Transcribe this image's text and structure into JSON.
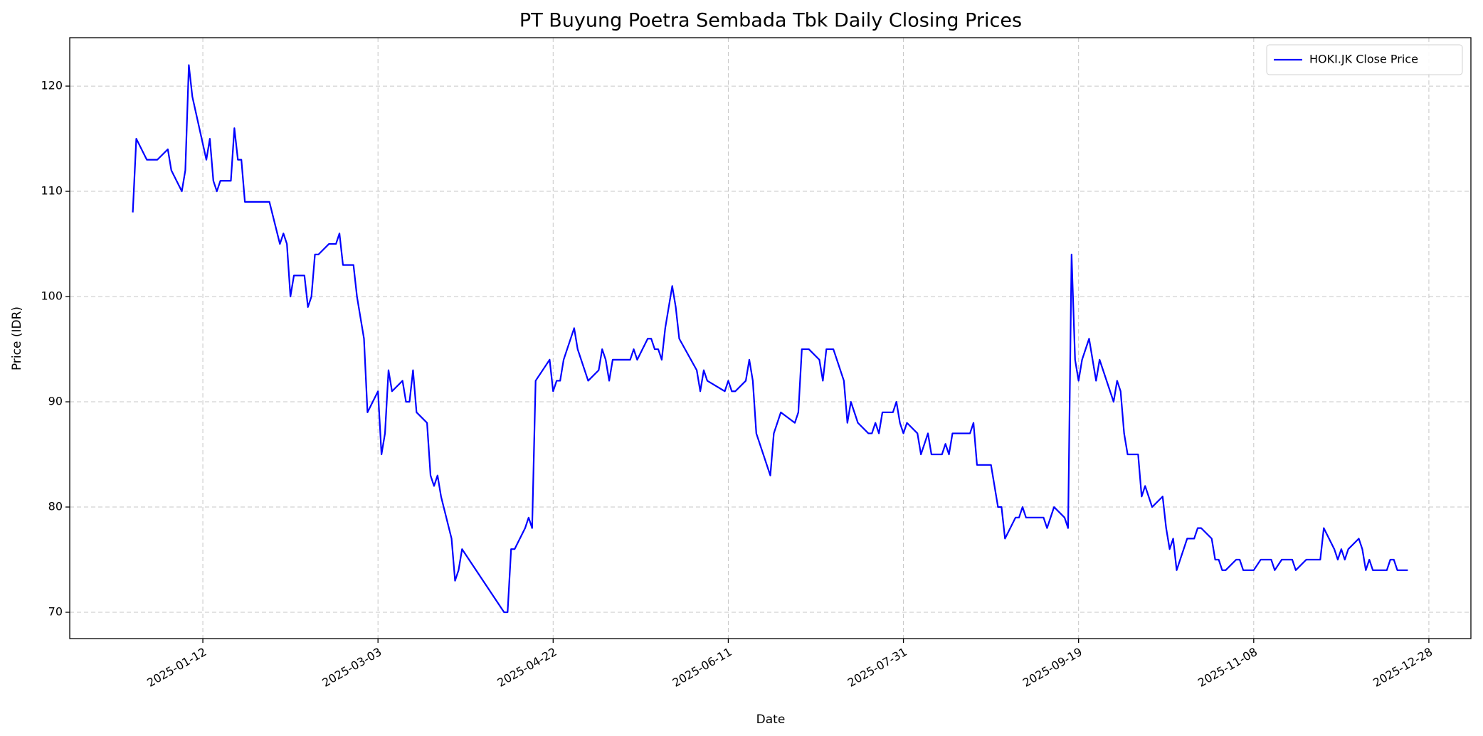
{
  "chart_data": {
    "type": "line",
    "title": "PT Buyung Poetra Sembada Tbk Daily Closing Prices",
    "xlabel": "Date",
    "ylabel": "Price (IDR)",
    "x": [
      "2024-12-23",
      "2024-12-24",
      "2024-12-27",
      "2024-12-30",
      "2025-01-02",
      "2025-01-03",
      "2025-01-06",
      "2025-01-07",
      "2025-01-08",
      "2025-01-09",
      "2025-01-13",
      "2025-01-14",
      "2025-01-15",
      "2025-01-16",
      "2025-01-17",
      "2025-01-20",
      "2025-01-21",
      "2025-01-22",
      "2025-01-23",
      "2025-01-24",
      "2025-01-31",
      "2025-02-03",
      "2025-02-04",
      "2025-02-05",
      "2025-02-06",
      "2025-02-07",
      "2025-02-10",
      "2025-02-11",
      "2025-02-12",
      "2025-02-13",
      "2025-02-14",
      "2025-02-17",
      "2025-02-19",
      "2025-02-20",
      "2025-02-21",
      "2025-02-24",
      "2025-02-25",
      "2025-02-27",
      "2025-02-28",
      "2025-03-03",
      "2025-03-04",
      "2025-03-05",
      "2025-03-06",
      "2025-03-07",
      "2025-03-10",
      "2025-03-11",
      "2025-03-12",
      "2025-03-13",
      "2025-03-14",
      "2025-03-17",
      "2025-03-18",
      "2025-03-19",
      "2025-03-20",
      "2025-03-21",
      "2025-03-24",
      "2025-03-25",
      "2025-03-26",
      "2025-03-27",
      "2025-04-08",
      "2025-04-09",
      "2025-04-10",
      "2025-04-11",
      "2025-04-14",
      "2025-04-15",
      "2025-04-16",
      "2025-04-17",
      "2025-04-21",
      "2025-04-22",
      "2025-04-23",
      "2025-04-24",
      "2025-04-25",
      "2025-04-28",
      "2025-04-29",
      "2025-05-02",
      "2025-05-05",
      "2025-05-06",
      "2025-05-07",
      "2025-05-08",
      "2025-05-09",
      "2025-05-14",
      "2025-05-15",
      "2025-05-16",
      "2025-05-19",
      "2025-05-20",
      "2025-05-21",
      "2025-05-22",
      "2025-05-23",
      "2025-05-24",
      "2025-05-26",
      "2025-05-27",
      "2025-05-28",
      "2025-06-02",
      "2025-06-03",
      "2025-06-04",
      "2025-06-05",
      "2025-06-10",
      "2025-06-11",
      "2025-06-12",
      "2025-06-13",
      "2025-06-16",
      "2025-06-17",
      "2025-06-18",
      "2025-06-19",
      "2025-06-23",
      "2025-06-24",
      "2025-06-26",
      "2025-06-30",
      "2025-07-01",
      "2025-07-02",
      "2025-07-04",
      "2025-07-07",
      "2025-07-08",
      "2025-07-09",
      "2025-07-11",
      "2025-07-14",
      "2025-07-15",
      "2025-07-16",
      "2025-07-18",
      "2025-07-21",
      "2025-07-22",
      "2025-07-23",
      "2025-07-24",
      "2025-07-25",
      "2025-07-27",
      "2025-07-28",
      "2025-07-29",
      "2025-07-30",
      "2025-07-31",
      "2025-08-01",
      "2025-08-04",
      "2025-08-05",
      "2025-08-07",
      "2025-08-08",
      "2025-08-11",
      "2025-08-12",
      "2025-08-13",
      "2025-08-14",
      "2025-08-19",
      "2025-08-20",
      "2025-08-21",
      "2025-08-25",
      "2025-08-27",
      "2025-08-28",
      "2025-08-29",
      "2025-09-01",
      "2025-09-02",
      "2025-09-03",
      "2025-09-04",
      "2025-09-09",
      "2025-09-10",
      "2025-09-12",
      "2025-09-15",
      "2025-09-16",
      "2025-09-17",
      "2025-09-18",
      "2025-09-19",
      "2025-09-20",
      "2025-09-22",
      "2025-09-24",
      "2025-09-25",
      "2025-09-29",
      "2025-09-30",
      "2025-10-01",
      "2025-10-02",
      "2025-10-03",
      "2025-10-06",
      "2025-10-07",
      "2025-10-08",
      "2025-10-10",
      "2025-10-13",
      "2025-10-14",
      "2025-10-15",
      "2025-10-16",
      "2025-10-17",
      "2025-10-20",
      "2025-10-22",
      "2025-10-23",
      "2025-10-24",
      "2025-10-27",
      "2025-10-28",
      "2025-10-29",
      "2025-10-30",
      "2025-10-31",
      "2025-11-03",
      "2025-11-04",
      "2025-11-05",
      "2025-11-06",
      "2025-11-08",
      "2025-11-10",
      "2025-11-13",
      "2025-11-14",
      "2025-11-16",
      "2025-11-19",
      "2025-11-20",
      "2025-11-23",
      "2025-11-26",
      "2025-11-27",
      "2025-11-28",
      "2025-12-01",
      "2025-12-02",
      "2025-12-03",
      "2025-12-04",
      "2025-12-05",
      "2025-12-08",
      "2025-12-09",
      "2025-12-10",
      "2025-12-11",
      "2025-12-12",
      "2025-12-16",
      "2025-12-17",
      "2025-12-18",
      "2025-12-19",
      "2025-12-22"
    ],
    "series": [
      {
        "name": "HOKI.JK Close Price",
        "color": "#0000ff",
        "values": [
          108,
          115,
          113,
          113,
          114,
          112,
          110,
          112,
          122,
          119,
          113,
          115,
          111,
          110,
          111,
          111,
          116,
          113,
          113,
          109,
          109,
          105,
          106,
          105,
          100,
          102,
          102,
          99,
          100,
          104,
          104,
          105,
          105,
          106,
          103,
          103,
          100,
          96,
          89,
          91,
          85,
          87,
          93,
          91,
          92,
          90,
          90,
          93,
          89,
          88,
          83,
          82,
          83,
          81,
          77,
          73,
          74,
          76,
          70,
          70,
          76,
          76,
          78,
          79,
          78,
          92,
          94,
          91,
          92,
          92,
          94,
          97,
          95,
          92,
          93,
          95,
          94,
          92,
          94,
          94,
          95,
          94,
          96,
          96,
          95,
          95,
          94,
          97,
          101,
          99,
          96,
          93,
          91,
          93,
          92,
          91,
          92,
          91,
          91,
          92,
          94,
          92,
          87,
          83,
          87,
          89,
          88,
          89,
          95,
          95,
          94,
          92,
          95,
          95,
          92,
          88,
          90,
          88,
          87,
          87,
          88,
          87,
          89,
          89,
          89,
          90,
          88,
          87,
          88,
          87,
          85,
          87,
          85,
          85,
          86,
          85,
          87,
          87,
          88,
          84,
          84,
          80,
          80,
          77,
          79,
          79,
          80,
          79,
          79,
          78,
          80,
          79,
          78,
          104,
          94,
          92,
          94,
          96,
          92,
          94,
          90,
          92,
          91,
          87,
          85,
          85,
          81,
          82,
          80,
          81,
          78,
          76,
          77,
          74,
          77,
          77,
          78,
          78,
          77,
          75,
          75,
          74,
          74,
          75,
          75,
          74,
          74,
          74,
          75,
          75,
          74,
          75,
          75,
          74,
          75,
          75,
          75,
          78,
          76,
          75,
          76,
          75,
          76,
          77,
          76,
          74,
          75,
          74,
          74,
          75,
          75,
          74,
          74
        ]
      }
    ],
    "xlim": [
      "2024-12-05",
      "2026-01-09"
    ],
    "xticks": [
      "2025-01-12",
      "2025-03-03",
      "2025-04-22",
      "2025-06-11",
      "2025-07-31",
      "2025-09-19",
      "2025-11-08",
      "2025-12-28"
    ],
    "ylim": [
      67.5,
      124.6
    ],
    "yticks": [
      70,
      80,
      90,
      100,
      110,
      120
    ],
    "grid": true,
    "legend": "upper right"
  }
}
